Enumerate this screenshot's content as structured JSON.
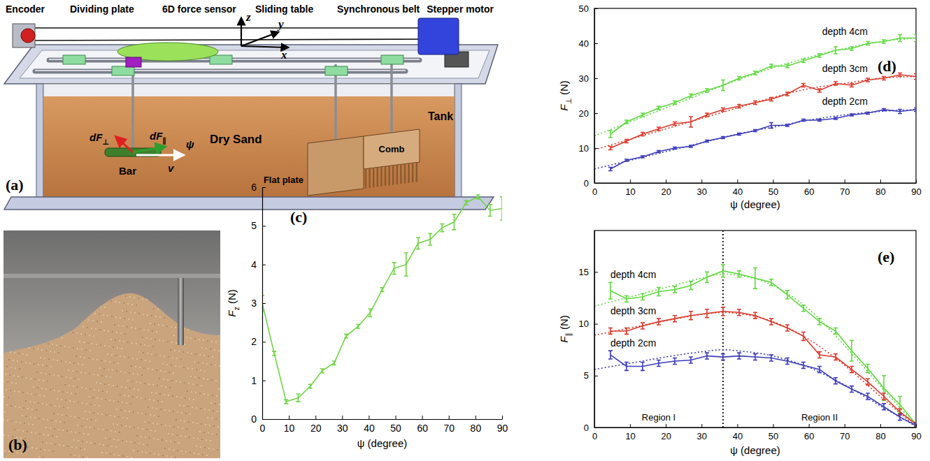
{
  "panels": [
    "(a)",
    "(b)",
    "(c)",
    "(d)",
    "(e)"
  ],
  "diagram": {
    "top_labels": [
      "Encoder",
      "Dividing plate",
      "6D force sensor",
      "Sliding table",
      "Synchronous belt",
      "Stepper motor"
    ],
    "axes": [
      "x",
      "y",
      "z"
    ],
    "forces": [
      "dF⊥",
      "dF∥"
    ],
    "angle": "ψ",
    "velocity": "v",
    "parts": {
      "bar": "Bar",
      "sand": "Dry Sand",
      "plate": "Flat plate",
      "comb": "Comb",
      "tank": "Tank"
    }
  },
  "chart_data": [
    {
      "type": "line",
      "x_label": "ψ (degree)",
      "y_label": "Fz (N)",
      "x": [
        0,
        4.5,
        9,
        13.5,
        18,
        22.5,
        27,
        31.5,
        36,
        40.5,
        45,
        49.5,
        54,
        58.5,
        63,
        67.5,
        72,
        76.5,
        81,
        85.5,
        90
      ],
      "series": [
        {
          "color": "#6fd444",
          "values": [
            3.0,
            1.7,
            0.45,
            0.55,
            0.85,
            1.25,
            1.45,
            2.15,
            2.4,
            2.75,
            3.35,
            3.9,
            4.0,
            4.55,
            4.65,
            4.95,
            5.1,
            5.6,
            5.75,
            5.4,
            5.45
          ],
          "errors": [
            0.2,
            0.05,
            0.05,
            0.1,
            0.05,
            0.05,
            0.05,
            0.05,
            0.05,
            0.1,
            0.05,
            0.15,
            0.3,
            0.15,
            0.15,
            0.1,
            0.2,
            0.05,
            0.05,
            0.15,
            0.3
          ]
        }
      ],
      "xlim": [
        0,
        90
      ],
      "xticks": [
        0,
        10,
        20,
        30,
        40,
        50,
        60,
        70,
        80,
        90
      ],
      "ylim": [
        0,
        6
      ],
      "yticks": [
        0,
        1,
        2,
        3,
        4,
        5,
        6
      ]
    },
    {
      "type": "line",
      "x_label": "ψ (degree)",
      "y_label": "F⊥ (N)",
      "x": [
        4.5,
        9,
        13.5,
        18,
        22.5,
        27,
        31.5,
        36,
        40.5,
        45,
        49.5,
        54,
        58.5,
        63,
        67.5,
        72,
        76.5,
        81,
        85.5,
        90
      ],
      "fit_x": [
        0,
        10,
        20,
        30,
        40,
        50,
        60,
        70,
        80,
        90
      ],
      "series": [
        {
          "name": "depth 4cm",
          "color": "#5fd93f",
          "values": [
            14,
            17.5,
            19.5,
            21.5,
            23,
            25,
            26.5,
            28,
            30,
            31.5,
            33.5,
            33.5,
            35,
            36.5,
            38,
            38.5,
            40,
            40.5,
            41.5,
            41.5
          ],
          "errors": [
            1,
            0.5,
            0.5,
            0.5,
            0.5,
            0.5,
            0.5,
            1.5,
            0.5,
            0.5,
            0.5,
            0.5,
            0.5,
            0.5,
            1,
            0.5,
            0.5,
            0.5,
            1,
            1
          ],
          "fit_values": [
            13.5,
            17.5,
            21.5,
            25.5,
            29.5,
            33,
            36,
            38.5,
            40.5,
            41.5
          ]
        },
        {
          "name": "depth 3cm",
          "color": "#d9392a",
          "values": [
            10,
            12,
            14,
            15.5,
            17,
            17.5,
            19.5,
            21,
            22,
            23,
            24,
            25.5,
            28,
            26.5,
            28.5,
            28,
            29.5,
            30,
            31,
            30.5
          ],
          "errors": [
            0.5,
            0.5,
            0.5,
            0.5,
            0.5,
            1.5,
            0.5,
            0.5,
            0.5,
            0.5,
            0.5,
            0.5,
            0.5,
            0.5,
            0.5,
            0.5,
            0.5,
            0.5,
            0.5,
            0.8
          ],
          "fit_values": [
            9.5,
            12.5,
            15.5,
            18.5,
            21.5,
            24.5,
            27,
            28.5,
            30,
            30.5
          ]
        },
        {
          "name": "depth 2cm",
          "color": "#3a3ab8",
          "values": [
            4,
            6.5,
            7.5,
            9,
            10,
            10.5,
            12,
            13,
            14,
            15,
            16.5,
            16.5,
            18,
            18,
            18.5,
            19.5,
            20,
            21,
            20.5,
            21
          ],
          "errors": [
            0.5,
            0.3,
            0.3,
            0.3,
            0.3,
            0.3,
            0.3,
            0.3,
            0.3,
            0.3,
            0.8,
            0.3,
            0.3,
            0.3,
            0.3,
            0.3,
            0.3,
            0.3,
            0.6,
            0.5
          ],
          "fit_values": [
            4,
            6.5,
            9,
            11.5,
            14,
            16,
            18,
            19.5,
            20.5,
            21
          ]
        }
      ],
      "xlim": [
        0,
        90
      ],
      "xticks": [
        0,
        10,
        20,
        30,
        40,
        50,
        60,
        70,
        80,
        90
      ],
      "ylim": [
        0,
        50
      ],
      "yticks": [
        0,
        10,
        20,
        30,
        40,
        50
      ]
    },
    {
      "type": "line",
      "x_label": "ψ (degree)",
      "y_label": "F∥ (N)",
      "x": [
        4.5,
        9,
        13.5,
        18,
        22.5,
        27,
        31.5,
        36,
        40.5,
        45,
        49.5,
        54,
        58.5,
        63,
        67.5,
        72,
        76.5,
        81,
        85.5,
        90
      ],
      "fit_x": [
        0,
        10,
        20,
        30,
        36,
        40,
        50,
        60,
        70,
        80,
        90
      ],
      "series": [
        {
          "name": "depth 4cm",
          "color": "#5fd93f",
          "values": [
            13.2,
            12.4,
            12.6,
            13.1,
            13.3,
            13.7,
            14.5,
            15.1,
            14.8,
            14.4,
            14,
            12.8,
            11.5,
            10.2,
            9.3,
            7.4,
            5.7,
            3.8,
            2.2,
            0.3
          ],
          "errors": [
            0.8,
            0.3,
            0.3,
            0.4,
            0.3,
            0.4,
            0.5,
            0.6,
            0.3,
            1.0,
            0.3,
            0.4,
            0.3,
            0.3,
            0.3,
            1.0,
            0.4,
            1.2,
            0.8,
            0.2
          ],
          "fit_values": [
            11.7,
            12.6,
            13.5,
            14.4,
            14.8,
            14.7,
            13.7,
            11.4,
            7.9,
            4.0,
            0.2
          ]
        },
        {
          "name": "depth 3cm",
          "color": "#d9392a",
          "values": [
            9.3,
            9.3,
            9.8,
            10.2,
            10.5,
            10.8,
            11.0,
            11.2,
            11.1,
            10.8,
            10.2,
            9.6,
            8.8,
            7.0,
            6.8,
            5.6,
            4.4,
            3.0,
            1.5,
            0.3
          ],
          "errors": [
            0.3,
            0.3,
            0.3,
            0.3,
            0.3,
            0.4,
            0.4,
            0.4,
            0.3,
            0.3,
            0.3,
            0.3,
            0.4,
            0.3,
            0.3,
            0.3,
            0.3,
            0.3,
            0.3,
            0.2
          ],
          "fit_values": [
            8.9,
            9.6,
            10.3,
            10.9,
            11.1,
            11.0,
            10.2,
            8.5,
            6.0,
            3.0,
            0.1
          ]
        },
        {
          "name": "depth 2cm",
          "color": "#3a3ab8",
          "values": [
            7.0,
            5.9,
            5.9,
            6.2,
            6.4,
            6.5,
            6.9,
            6.8,
            6.9,
            6.8,
            6.7,
            6.4,
            6.0,
            5.6,
            4.5,
            3.7,
            3.0,
            2.0,
            1.0,
            0.2
          ],
          "errors": [
            0.4,
            0.4,
            0.4,
            0.3,
            0.3,
            0.3,
            0.3,
            0.3,
            0.3,
            0.3,
            0.3,
            0.3,
            0.3,
            0.3,
            0.3,
            0.3,
            0.3,
            0.3,
            0.3,
            0.2
          ],
          "fit_values": [
            5.6,
            6.2,
            6.8,
            7.3,
            7.5,
            7.4,
            6.9,
            5.8,
            4.1,
            2.1,
            0.1
          ]
        }
      ],
      "regions": {
        "boundary": 36,
        "labels": [
          "Region I",
          "Region II"
        ]
      },
      "xlim": [
        0,
        90
      ],
      "xticks": [
        0,
        10,
        20,
        30,
        40,
        50,
        60,
        70,
        80,
        90
      ],
      "ylim": [
        0,
        19
      ],
      "yticks": [
        0,
        5,
        10,
        15
      ]
    }
  ]
}
